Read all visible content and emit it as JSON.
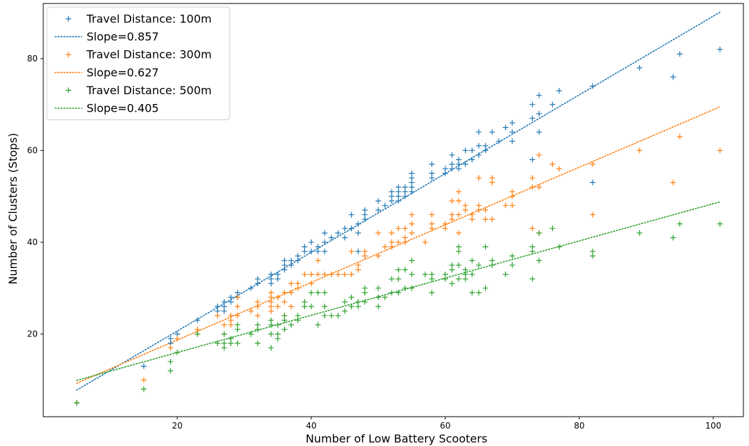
{
  "chart_data": {
    "type": "scatter",
    "title": "",
    "xlabel": "Number of Low Battery Scooters",
    "ylabel": "Number of Clusters (Stops)",
    "xlim": [
      0,
      104.5
    ],
    "ylim": [
      2,
      92
    ],
    "xticks": [
      20,
      40,
      60,
      80,
      100
    ],
    "yticks": [
      20,
      40,
      60,
      80
    ],
    "grid": false,
    "legend_position": "upper-left",
    "series": [
      {
        "name": "Travel Distance: 100m",
        "kind": "scatter",
        "marker": "+",
        "color": "#1f77b4",
        "points": [
          [
            5,
            5
          ],
          [
            15,
            13
          ],
          [
            19,
            18
          ],
          [
            19,
            19
          ],
          [
            20,
            20
          ],
          [
            23,
            23
          ],
          [
            26,
            25
          ],
          [
            26,
            26
          ],
          [
            27,
            25
          ],
          [
            27,
            26
          ],
          [
            27,
            27
          ],
          [
            28,
            27
          ],
          [
            28,
            28
          ],
          [
            29,
            28
          ],
          [
            29,
            29
          ],
          [
            31,
            30
          ],
          [
            32,
            31
          ],
          [
            32,
            32
          ],
          [
            34,
            31
          ],
          [
            34,
            32
          ],
          [
            34,
            33
          ],
          [
            35,
            32
          ],
          [
            35,
            33
          ],
          [
            36,
            34
          ],
          [
            36,
            35
          ],
          [
            36,
            36
          ],
          [
            37,
            35
          ],
          [
            37,
            36
          ],
          [
            38,
            36
          ],
          [
            38,
            37
          ],
          [
            39,
            38
          ],
          [
            39,
            39
          ],
          [
            40,
            38
          ],
          [
            40,
            40
          ],
          [
            41,
            38
          ],
          [
            41,
            39
          ],
          [
            42,
            38
          ],
          [
            42,
            40
          ],
          [
            42,
            42
          ],
          [
            43,
            41
          ],
          [
            44,
            42
          ],
          [
            45,
            41
          ],
          [
            45,
            43
          ],
          [
            46,
            43
          ],
          [
            46,
            46
          ],
          [
            47,
            42
          ],
          [
            47,
            44
          ],
          [
            47,
            38
          ],
          [
            48,
            45
          ],
          [
            48,
            46
          ],
          [
            48,
            47
          ],
          [
            50,
            47
          ],
          [
            50,
            49
          ],
          [
            51,
            48
          ],
          [
            52,
            49
          ],
          [
            52,
            50
          ],
          [
            52,
            51
          ],
          [
            53,
            49
          ],
          [
            53,
            50
          ],
          [
            53,
            51
          ],
          [
            53,
            52
          ],
          [
            54,
            50
          ],
          [
            54,
            51
          ],
          [
            54,
            52
          ],
          [
            55,
            51
          ],
          [
            55,
            52
          ],
          [
            55,
            53
          ],
          [
            55,
            54
          ],
          [
            55,
            55
          ],
          [
            58,
            54
          ],
          [
            58,
            55
          ],
          [
            58,
            57
          ],
          [
            60,
            55
          ],
          [
            60,
            56
          ],
          [
            61,
            56
          ],
          [
            61,
            57
          ],
          [
            61,
            59
          ],
          [
            62,
            56
          ],
          [
            62,
            57
          ],
          [
            62,
            58
          ],
          [
            63,
            57
          ],
          [
            63,
            60
          ],
          [
            64,
            58
          ],
          [
            64,
            60
          ],
          [
            65,
            59
          ],
          [
            65,
            61
          ],
          [
            65,
            64
          ],
          [
            66,
            60
          ],
          [
            66,
            61
          ],
          [
            67,
            64
          ],
          [
            68,
            62
          ],
          [
            69,
            65
          ],
          [
            70,
            62
          ],
          [
            70,
            64
          ],
          [
            70,
            66
          ],
          [
            73,
            58
          ],
          [
            73,
            67
          ],
          [
            73,
            70
          ],
          [
            74,
            64
          ],
          [
            74,
            68
          ],
          [
            74,
            72
          ],
          [
            76,
            70
          ],
          [
            77,
            73
          ],
          [
            82,
            53
          ],
          [
            82,
            74
          ],
          [
            89,
            78
          ],
          [
            94,
            76
          ],
          [
            95,
            81
          ],
          [
            101,
            82
          ]
        ]
      },
      {
        "name": "Slope=0.857",
        "kind": "line",
        "dash": "dotted",
        "color": "#1f77b4",
        "x": [
          5,
          101
        ],
        "y": [
          7.8,
          90.1
        ]
      },
      {
        "name": "Travel Distance: 300m",
        "kind": "scatter",
        "marker": "+",
        "color": "#ff7f0e",
        "points": [
          [
            5,
            5
          ],
          [
            15,
            10
          ],
          [
            19,
            17
          ],
          [
            20,
            19
          ],
          [
            23,
            20
          ],
          [
            23,
            21
          ],
          [
            26,
            24
          ],
          [
            27,
            20
          ],
          [
            27,
            22
          ],
          [
            28,
            22
          ],
          [
            28,
            23
          ],
          [
            28,
            24
          ],
          [
            29,
            24
          ],
          [
            29,
            26
          ],
          [
            29,
            28
          ],
          [
            31,
            25
          ],
          [
            32,
            24
          ],
          [
            32,
            26
          ],
          [
            32,
            27
          ],
          [
            34,
            25
          ],
          [
            34,
            26
          ],
          [
            34,
            27
          ],
          [
            34,
            28
          ],
          [
            34,
            29
          ],
          [
            35,
            26
          ],
          [
            35,
            28
          ],
          [
            36,
            24
          ],
          [
            36,
            27
          ],
          [
            36,
            29
          ],
          [
            37,
            26
          ],
          [
            37,
            29
          ],
          [
            37,
            31
          ],
          [
            38,
            30
          ],
          [
            38,
            31
          ],
          [
            39,
            33
          ],
          [
            40,
            31
          ],
          [
            40,
            33
          ],
          [
            41,
            33
          ],
          [
            41,
            36
          ],
          [
            42,
            33
          ],
          [
            43,
            33
          ],
          [
            44,
            33
          ],
          [
            45,
            33
          ],
          [
            46,
            33
          ],
          [
            46,
            38
          ],
          [
            47,
            34
          ],
          [
            47,
            35
          ],
          [
            48,
            37
          ],
          [
            48,
            38
          ],
          [
            50,
            37
          ],
          [
            50,
            42
          ],
          [
            51,
            39
          ],
          [
            52,
            39
          ],
          [
            52,
            40
          ],
          [
            52,
            42
          ],
          [
            53,
            40
          ],
          [
            53,
            43
          ],
          [
            54,
            40
          ],
          [
            54,
            41
          ],
          [
            54,
            43
          ],
          [
            55,
            42
          ],
          [
            55,
            44
          ],
          [
            55,
            46
          ],
          [
            57,
            40
          ],
          [
            58,
            43
          ],
          [
            58,
            44
          ],
          [
            58,
            46
          ],
          [
            60,
            43
          ],
          [
            60,
            44
          ],
          [
            61,
            45
          ],
          [
            61,
            46
          ],
          [
            61,
            49
          ],
          [
            62,
            42
          ],
          [
            62,
            46
          ],
          [
            62,
            49
          ],
          [
            62,
            51
          ],
          [
            63,
            47
          ],
          [
            63,
            48
          ],
          [
            64,
            45
          ],
          [
            64,
            46
          ],
          [
            65,
            47
          ],
          [
            65,
            48
          ],
          [
            65,
            54
          ],
          [
            66,
            45
          ],
          [
            66,
            47
          ],
          [
            67,
            45
          ],
          [
            67,
            53
          ],
          [
            67,
            54
          ],
          [
            69,
            48
          ],
          [
            70,
            48
          ],
          [
            70,
            50
          ],
          [
            70,
            51
          ],
          [
            73,
            43
          ],
          [
            73,
            52
          ],
          [
            73,
            54
          ],
          [
            74,
            42
          ],
          [
            74,
            52
          ],
          [
            74,
            59
          ],
          [
            76,
            57
          ],
          [
            77,
            56
          ],
          [
            82,
            46
          ],
          [
            82,
            57
          ],
          [
            89,
            60
          ],
          [
            94,
            53
          ],
          [
            95,
            63
          ],
          [
            101,
            60
          ]
        ]
      },
      {
        "name": "Slope=0.627",
        "kind": "line",
        "dash": "dotted",
        "color": "#ff7f0e",
        "x": [
          5,
          101
        ],
        "y": [
          9.3,
          69.5
        ]
      },
      {
        "name": "Travel Distance: 500m",
        "kind": "scatter",
        "marker": "+",
        "color": "#2ca02c",
        "points": [
          [
            5,
            5
          ],
          [
            15,
            8
          ],
          [
            19,
            12
          ],
          [
            19,
            14
          ],
          [
            20,
            16
          ],
          [
            23,
            20
          ],
          [
            26,
            18
          ],
          [
            27,
            17
          ],
          [
            27,
            18
          ],
          [
            27,
            20
          ],
          [
            28,
            18
          ],
          [
            28,
            19
          ],
          [
            29,
            18
          ],
          [
            29,
            21
          ],
          [
            29,
            22
          ],
          [
            31,
            20
          ],
          [
            32,
            18
          ],
          [
            32,
            21
          ],
          [
            32,
            22
          ],
          [
            34,
            17
          ],
          [
            34,
            20
          ],
          [
            34,
            22
          ],
          [
            34,
            23
          ],
          [
            35,
            19
          ],
          [
            35,
            20
          ],
          [
            35,
            22
          ],
          [
            36,
            21
          ],
          [
            36,
            23
          ],
          [
            36,
            24
          ],
          [
            37,
            22
          ],
          [
            38,
            23
          ],
          [
            38,
            24
          ],
          [
            39,
            26
          ],
          [
            39,
            27
          ],
          [
            40,
            26
          ],
          [
            40,
            29
          ],
          [
            41,
            22
          ],
          [
            41,
            29
          ],
          [
            42,
            24
          ],
          [
            42,
            26
          ],
          [
            42,
            29
          ],
          [
            43,
            24
          ],
          [
            44,
            24
          ],
          [
            45,
            25
          ],
          [
            45,
            27
          ],
          [
            46,
            26
          ],
          [
            46,
            28
          ],
          [
            47,
            26
          ],
          [
            47,
            27
          ],
          [
            48,
            27
          ],
          [
            48,
            29
          ],
          [
            48,
            30
          ],
          [
            50,
            26
          ],
          [
            50,
            28
          ],
          [
            50,
            30
          ],
          [
            51,
            28
          ],
          [
            52,
            29
          ],
          [
            52,
            32
          ],
          [
            53,
            29
          ],
          [
            53,
            32
          ],
          [
            53,
            34
          ],
          [
            54,
            30
          ],
          [
            54,
            34
          ],
          [
            55,
            30
          ],
          [
            55,
            33
          ],
          [
            55,
            36
          ],
          [
            57,
            33
          ],
          [
            58,
            29
          ],
          [
            58,
            32
          ],
          [
            58,
            33
          ],
          [
            60,
            32
          ],
          [
            60,
            33
          ],
          [
            61,
            31
          ],
          [
            61,
            34
          ],
          [
            61,
            35
          ],
          [
            62,
            32
          ],
          [
            62,
            35
          ],
          [
            62,
            38
          ],
          [
            62,
            39
          ],
          [
            63,
            32
          ],
          [
            63,
            33
          ],
          [
            63,
            34
          ],
          [
            64,
            29
          ],
          [
            64,
            33
          ],
          [
            64,
            36
          ],
          [
            65,
            29
          ],
          [
            65,
            35
          ],
          [
            66,
            30
          ],
          [
            66,
            39
          ],
          [
            67,
            35
          ],
          [
            67,
            36
          ],
          [
            69,
            33
          ],
          [
            70,
            35
          ],
          [
            70,
            37
          ],
          [
            73,
            32
          ],
          [
            73,
            38
          ],
          [
            73,
            39
          ],
          [
            74,
            36
          ],
          [
            74,
            42
          ],
          [
            76,
            43
          ],
          [
            77,
            39
          ],
          [
            82,
            37
          ],
          [
            82,
            38
          ],
          [
            89,
            42
          ],
          [
            94,
            41
          ],
          [
            95,
            44
          ],
          [
            101,
            44
          ]
        ]
      },
      {
        "name": "Slope=0.405",
        "kind": "line",
        "dash": "dotted",
        "color": "#2ca02c",
        "x": [
          5,
          101
        ],
        "y": [
          9.9,
          48.8
        ]
      }
    ]
  }
}
